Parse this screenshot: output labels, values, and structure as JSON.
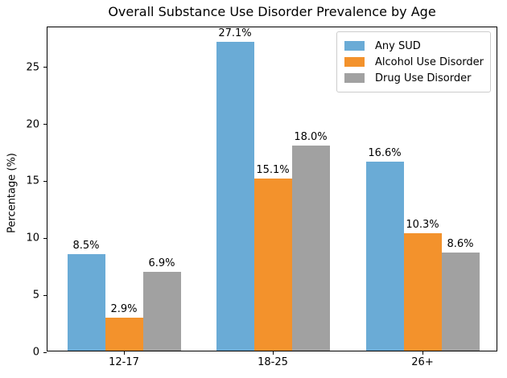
{
  "chart_data": {
    "type": "bar",
    "title": "Overall Substance Use Disorder Prevalence by Age",
    "categories": [
      "12-17",
      "18-25",
      "26+"
    ],
    "series": [
      {
        "name": "Any SUD",
        "color": "#6aabd6",
        "values": [
          8.5,
          27.1,
          16.6
        ]
      },
      {
        "name": "Alcohol Use Disorder",
        "color": "#f3922c",
        "values": [
          2.9,
          15.1,
          10.3
        ]
      },
      {
        "name": "Drug Use Disorder",
        "color": "#a1a1a1",
        "values": [
          6.9,
          18.0,
          8.6
        ]
      }
    ],
    "bar_label_suffix": "%",
    "xlabel": "",
    "ylabel": "Percentage (%)",
    "ylim": [
      0,
      28.5
    ],
    "yticks": [
      0,
      5,
      10,
      15,
      20,
      25
    ],
    "grid": false,
    "legend_position": "upper right",
    "colors": {
      "text": "#000000",
      "spine": "#000000",
      "legend_border": "#cccccc",
      "background": "#ffffff"
    }
  }
}
